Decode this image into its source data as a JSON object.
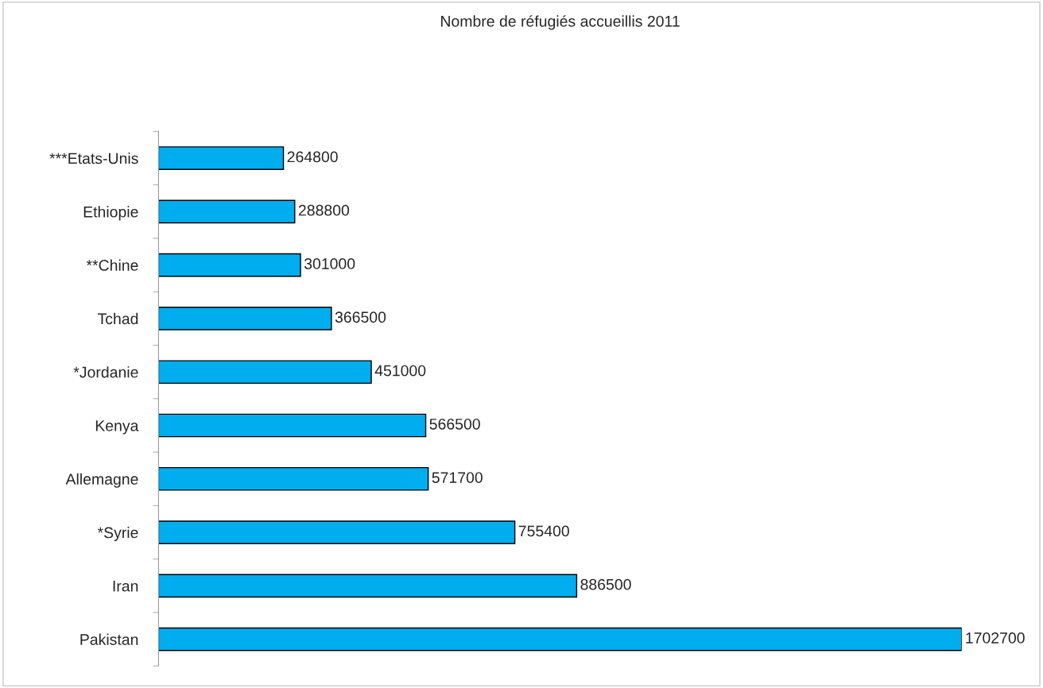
{
  "chart_data": {
    "type": "bar",
    "orientation": "horizontal",
    "title": "Nombre de réfugiés accueillis 2011",
    "categories": [
      "***Etats-Unis",
      "Ethiopie",
      "**Chine",
      "Tchad",
      "*Jordanie",
      "Kenya",
      "Allemagne",
      "*Syrie",
      "Iran",
      "Pakistan"
    ],
    "values": [
      264800,
      288800,
      301000,
      366500,
      451000,
      566500,
      571700,
      755400,
      886500,
      1702700
    ],
    "color": "#00adef",
    "data_labels": true,
    "grid": false,
    "legend": false
  }
}
